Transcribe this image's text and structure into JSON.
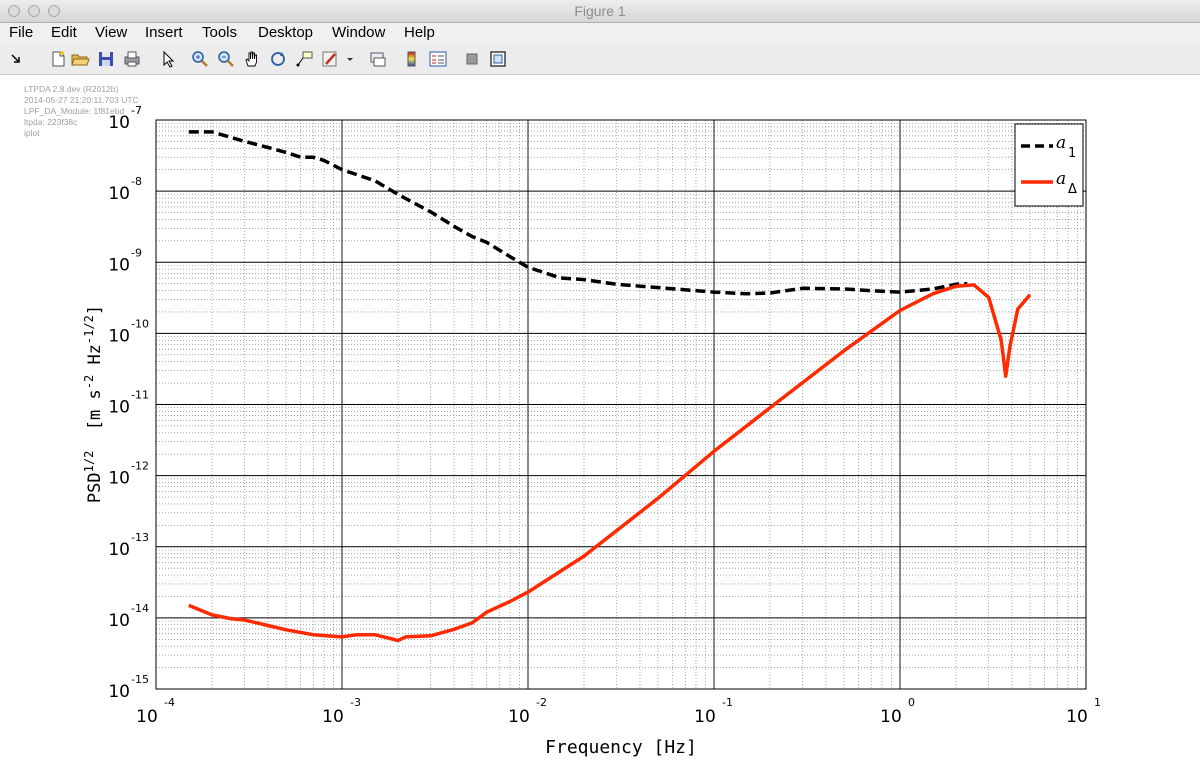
{
  "window": {
    "title": "Figure 1"
  },
  "menu": [
    "File",
    "Edit",
    "View",
    "Insert",
    "Tools",
    "Desktop",
    "Window",
    "Help"
  ],
  "toolbar": {
    "buttons": [
      "dock-arrow-icon",
      "new-figure-icon",
      "open-file-icon",
      "save-icon",
      "print-icon",
      "edit-plot-arrow-icon",
      "zoom-in-icon",
      "zoom-out-icon",
      "pan-hand-icon",
      "rotate-3d-icon",
      "data-cursor-icon",
      "brush-icon",
      "brush-dropdown-icon",
      "link-plot-icon",
      "colorbar-icon",
      "legend-icon",
      "hide-plot-tools-icon",
      "show-plot-tools-icon"
    ]
  },
  "stamp": {
    "lines": [
      "LTPDA 2.8.dev (R2012b)",
      "2014-05-27 21:20:11.703 UTC",
      "LPF_DA_Module: 1f81ebd",
      "ltpda: 223f38c",
      "iplot"
    ]
  },
  "chart_data": {
    "type": "line",
    "xscale": "log",
    "yscale": "log",
    "xlim": [
      0.0001,
      10
    ],
    "ylim": [
      1e-15,
      1e-07
    ],
    "grid": true,
    "xlabel": "Frequency   [Hz]",
    "ylabel": "PSD^{1/2}  [m s^{-2} Hz^{-1/2}]",
    "xticks": [
      {
        "base": "10",
        "exp": "-4",
        "value": 0.0001
      },
      {
        "base": "10",
        "exp": "-3",
        "value": 0.001
      },
      {
        "base": "10",
        "exp": "-2",
        "value": 0.01
      },
      {
        "base": "10",
        "exp": "-1",
        "value": 0.1
      },
      {
        "base": "10",
        "exp": "0",
        "value": 1
      },
      {
        "base": "10",
        "exp": "1",
        "value": 10
      }
    ],
    "yticks": [
      {
        "base": "10",
        "exp": "-7",
        "value": 1e-07
      },
      {
        "base": "10",
        "exp": "-8",
        "value": 1e-08
      },
      {
        "base": "10",
        "exp": "-9",
        "value": 1e-09
      },
      {
        "base": "10",
        "exp": "-10",
        "value": 1e-10
      },
      {
        "base": "10",
        "exp": "-11",
        "value": 1e-11
      },
      {
        "base": "10",
        "exp": "-12",
        "value": 1e-12
      },
      {
        "base": "10",
        "exp": "-13",
        "value": 1e-13
      },
      {
        "base": "10",
        "exp": "-14",
        "value": 1e-14
      },
      {
        "base": "10",
        "exp": "-15",
        "value": 1e-15
      }
    ],
    "legend_position": "top-right",
    "series": [
      {
        "name": "a_1",
        "label_main": "a",
        "label_sub": "1",
        "color": "#000000",
        "style": "dashed",
        "points": [
          [
            0.00015,
            6.8e-08
          ],
          [
            0.0002,
            6.8e-08
          ],
          [
            0.0003,
            5e-08
          ],
          [
            0.0004,
            4.1e-08
          ],
          [
            0.0005,
            3.5e-08
          ],
          [
            0.0006,
            3e-08
          ],
          [
            0.0007,
            3e-08
          ],
          [
            0.0008,
            2.7e-08
          ],
          [
            0.001,
            2e-08
          ],
          [
            0.0015,
            1.4e-08
          ],
          [
            0.002,
            9e-09
          ],
          [
            0.003,
            5.1e-09
          ],
          [
            0.004,
            3.2e-09
          ],
          [
            0.005,
            2.3e-09
          ],
          [
            0.006,
            1.9e-09
          ],
          [
            0.008,
            1.2e-09
          ],
          [
            0.01,
            8.5e-10
          ],
          [
            0.015,
            6e-10
          ],
          [
            0.02,
            5.7e-10
          ],
          [
            0.03,
            4.9e-10
          ],
          [
            0.05,
            4.4e-10
          ],
          [
            0.1,
            3.8e-10
          ],
          [
            0.15,
            3.6e-10
          ],
          [
            0.2,
            3.7e-10
          ],
          [
            0.3,
            4.3e-10
          ],
          [
            0.5,
            4.2e-10
          ],
          [
            0.8,
            3.9e-10
          ],
          [
            1.0,
            3.8e-10
          ],
          [
            1.5,
            4.2e-10
          ],
          [
            2.0,
            4.9e-10
          ],
          [
            2.3,
            5e-10
          ]
        ]
      },
      {
        "name": "a_Δ",
        "label_main": "a",
        "label_sub": "Δ",
        "color": "#ff2a00",
        "style": "solid",
        "points": [
          [
            0.00015,
            1.5e-14
          ],
          [
            0.0002,
            1.1e-14
          ],
          [
            0.00025,
            9.8e-15
          ],
          [
            0.0003,
            9.3e-15
          ],
          [
            0.0004,
            7.8e-15
          ],
          [
            0.0005,
            6.8e-15
          ],
          [
            0.0007,
            5.8e-15
          ],
          [
            0.001,
            5.4e-15
          ],
          [
            0.0012,
            5.8e-15
          ],
          [
            0.0015,
            5.8e-15
          ],
          [
            0.002,
            4.8e-15
          ],
          [
            0.0022,
            5.4e-15
          ],
          [
            0.003,
            5.6e-15
          ],
          [
            0.004,
            6.9e-15
          ],
          [
            0.005,
            8.5e-15
          ],
          [
            0.006,
            1.2e-14
          ],
          [
            0.008,
            1.7e-14
          ],
          [
            0.01,
            2.3e-14
          ],
          [
            0.02,
            7.4e-14
          ],
          [
            0.05,
            4.8e-13
          ],
          [
            0.1,
            2.2e-12
          ],
          [
            0.2,
            9e-12
          ],
          [
            0.5,
            5.7e-11
          ],
          [
            1.0,
            2.1e-10
          ],
          [
            1.5,
            3.6e-10
          ],
          [
            2.0,
            4.6e-10
          ],
          [
            2.5,
            4.8e-10
          ],
          [
            3.0,
            3.2e-10
          ],
          [
            3.5,
            8e-11
          ],
          [
            3.7,
            2.5e-11
          ],
          [
            3.9,
            6.5e-11
          ],
          [
            4.3,
            2.2e-10
          ],
          [
            5.0,
            3.5e-10
          ]
        ]
      }
    ]
  }
}
